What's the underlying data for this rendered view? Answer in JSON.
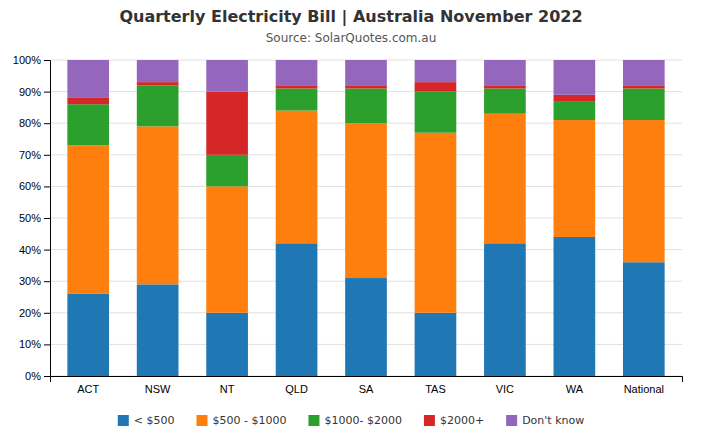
{
  "chart_data": {
    "type": "bar",
    "stacked": true,
    "title": "Quarterly Electricity Bill | Australia November 2022",
    "subtitle": "Source: SolarQuotes.com.au",
    "categories": [
      "ACT",
      "NSW",
      "NT",
      "QLD",
      "SA",
      "TAS",
      "VIC",
      "WA",
      "National"
    ],
    "series": [
      {
        "name": "< $500",
        "values": [
          26,
          29,
          20,
          42,
          31,
          20,
          42,
          44,
          36
        ]
      },
      {
        "name": "$500 - $1000",
        "values": [
          47,
          50,
          40,
          42,
          49,
          57,
          41,
          37,
          45
        ]
      },
      {
        "name": "$1000- $2000",
        "values": [
          13,
          13,
          10,
          7,
          11,
          13,
          8,
          6,
          10
        ]
      },
      {
        "name": "$2000+",
        "values": [
          2,
          1,
          20,
          1,
          1,
          3,
          1,
          2,
          1
        ]
      },
      {
        "name": "Don't know",
        "values": [
          12,
          7,
          10,
          8,
          8,
          7,
          8,
          11,
          8
        ]
      }
    ],
    "ylim": [
      0,
      100
    ],
    "yticks": [
      {
        "value": 0,
        "label": "0%"
      },
      {
        "value": 10,
        "label": "10%"
      },
      {
        "value": 20,
        "label": "20%"
      },
      {
        "value": 30,
        "label": "30%"
      },
      {
        "value": 40,
        "label": "40%"
      },
      {
        "value": 50,
        "label": "50%"
      },
      {
        "value": 60,
        "label": "60%"
      },
      {
        "value": 70,
        "label": "70%"
      },
      {
        "value": 80,
        "label": "80%"
      },
      {
        "value": 90,
        "label": "90%"
      },
      {
        "value": 100,
        "label": "100%"
      }
    ],
    "grid": true,
    "legend": "bottom"
  }
}
